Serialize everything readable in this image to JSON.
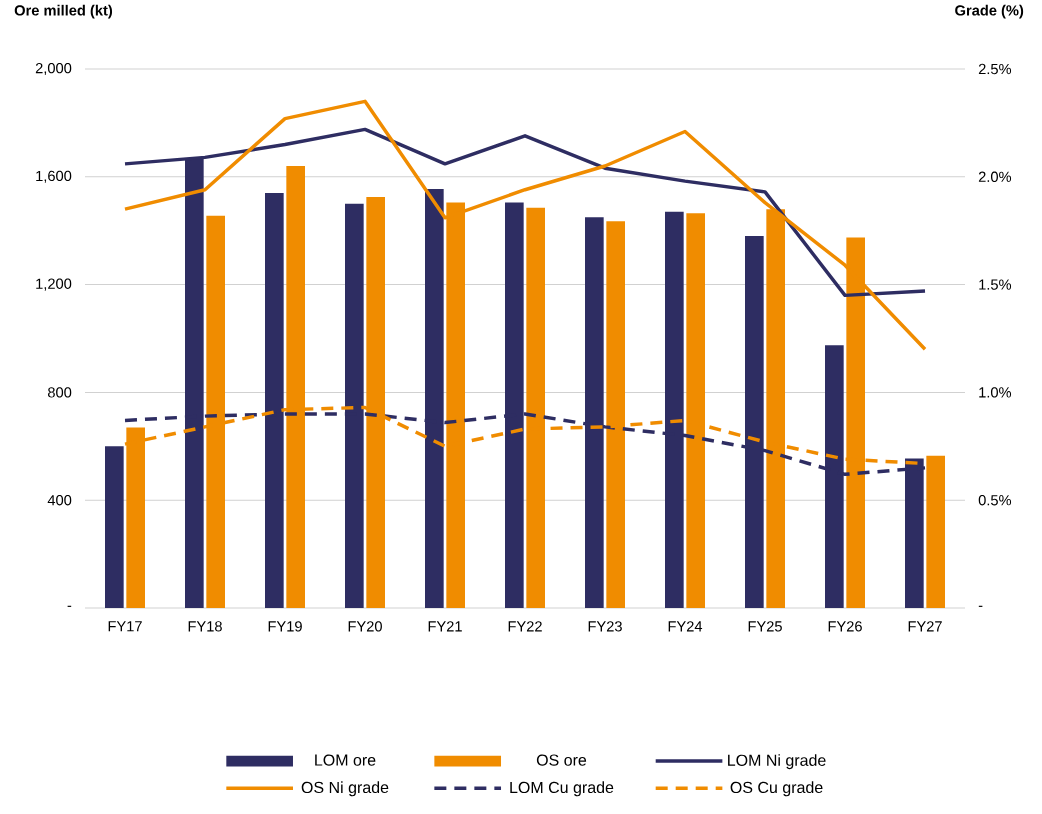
{
  "chart_data": {
    "type": "bar",
    "ylabel": "Ore milled (kt)",
    "y2label": "Grade (%)",
    "categories": [
      "FY17",
      "FY18",
      "FY19",
      "FY20",
      "FY21",
      "FY22",
      "FY23",
      "FY24",
      "FY25",
      "FY26",
      "FY27"
    ],
    "series": [
      {
        "name": "LOM ore",
        "color": "#2e2d62",
        "values": [
          600,
          1670,
          1540,
          1500,
          1555,
          1505,
          1450,
          1470,
          1380,
          975,
          555
        ]
      },
      {
        "name": "OS ore",
        "color": "#f08c00",
        "values": [
          670,
          1455,
          1640,
          1525,
          1505,
          1485,
          1435,
          1465,
          1480,
          1375,
          565
        ]
      },
      {
        "name": "LOM Ni grade",
        "type": "line",
        "axis": "y2",
        "line_style": "solid",
        "color": "#2e2d62",
        "values": [
          2.06,
          2.09,
          2.15,
          2.22,
          2.06,
          2.19,
          2.04,
          1.98,
          1.93,
          1.45,
          1.47
        ]
      },
      {
        "name": "OS Ni grade",
        "type": "line",
        "axis": "y2",
        "line_style": "solid",
        "color": "#f08c00",
        "values": [
          1.85,
          1.94,
          2.27,
          2.35,
          1.81,
          1.94,
          2.05,
          2.21,
          1.88,
          1.59,
          1.2
        ]
      },
      {
        "name": "LOM Cu grade",
        "type": "line",
        "axis": "y2",
        "line_style": "dashed",
        "color": "#2e2d62",
        "values": [
          0.87,
          0.89,
          0.9,
          0.9,
          0.86,
          0.9,
          0.84,
          0.8,
          0.73,
          0.62,
          0.65
        ]
      },
      {
        "name": "OS Cu grade",
        "type": "line",
        "axis": "y2",
        "line_style": "dashed",
        "color": "#f08c00",
        "values": [
          0.76,
          0.84,
          0.92,
          0.93,
          0.75,
          0.83,
          0.84,
          0.87,
          0.77,
          0.69,
          0.67
        ]
      }
    ],
    "ylim": [
      0,
      2000
    ],
    "yticks": [
      {
        "value": 0,
        "label": "-"
      },
      {
        "value": 400,
        "label": "400"
      },
      {
        "value": 800,
        "label": "800"
      },
      {
        "value": 1200,
        "label": "1,200"
      },
      {
        "value": 1600,
        "label": "1,600"
      },
      {
        "value": 2000,
        "label": "2,000"
      }
    ],
    "y2lim": [
      0,
      2.5
    ],
    "y2ticks": [
      {
        "value": 0,
        "label": "-"
      },
      {
        "value": 0.5,
        "label": "0.5%"
      },
      {
        "value": 1.0,
        "label": "1.0%"
      },
      {
        "value": 1.5,
        "label": "1.5%"
      },
      {
        "value": 2.0,
        "label": "2.0%"
      },
      {
        "value": 2.5,
        "label": "2.5%"
      }
    ],
    "grid": "y",
    "legend": "bottom"
  }
}
